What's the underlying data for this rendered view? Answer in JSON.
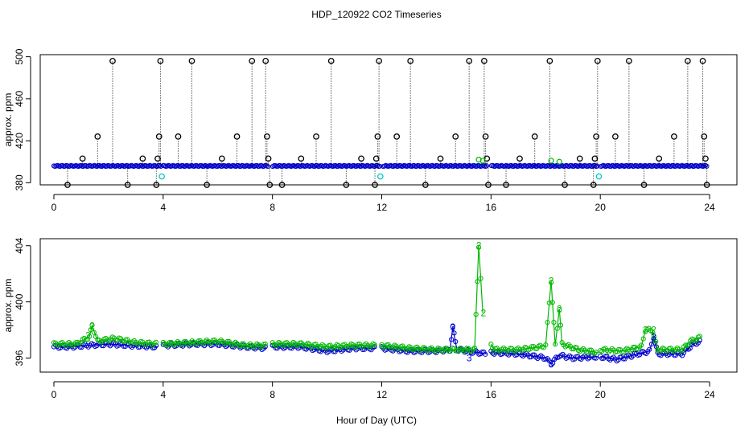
{
  "title": "HDP_120922  CO2 Timeseries",
  "xlabel": "Hour of Day (UTC)",
  "colors": {
    "series1": "#0000cc",
    "series2": "#00b800",
    "spikes": "#000000",
    "cyan": "#00c8c8",
    "frame": "#000000"
  },
  "chart_data": [
    {
      "type": "scatter",
      "ylabel": "approx. ppm",
      "xlim": [
        -0.5,
        25
      ],
      "ylim": [
        378,
        502
      ],
      "x_ticks": [
        0,
        4,
        8,
        12,
        16,
        20,
        24
      ],
      "x_tick_labels": [
        "0",
        "4",
        "8",
        "12",
        "16",
        "20",
        "24"
      ],
      "y_ticks": [
        380,
        420,
        460,
        500
      ],
      "y_tick_labels": [
        "380",
        "420",
        "460",
        "500"
      ],
      "baseline": 396,
      "gaps": [
        [
          3.93,
          4.0
        ],
        [
          7.85,
          7.98
        ],
        [
          11.93,
          12.02
        ],
        [
          15.88,
          15.98
        ],
        [
          19.93,
          20.02
        ]
      ],
      "spikes": [
        {
          "x": 0.5,
          "y": 378
        },
        {
          "x": 1.05,
          "y": 403
        },
        {
          "x": 1.6,
          "y": 424
        },
        {
          "x": 2.15,
          "y": 496
        },
        {
          "x": 2.7,
          "y": 378
        },
        {
          "x": 3.25,
          "y": 403
        },
        {
          "x": 3.75,
          "y": 378
        },
        {
          "x": 3.8,
          "y": 403
        },
        {
          "x": 3.85,
          "y": 424
        },
        {
          "x": 3.9,
          "y": 496
        },
        {
          "x": 4.55,
          "y": 424
        },
        {
          "x": 5.05,
          "y": 496
        },
        {
          "x": 5.6,
          "y": 378
        },
        {
          "x": 6.15,
          "y": 403
        },
        {
          "x": 6.7,
          "y": 424
        },
        {
          "x": 7.25,
          "y": 496
        },
        {
          "x": 7.75,
          "y": 496
        },
        {
          "x": 7.8,
          "y": 424
        },
        {
          "x": 7.85,
          "y": 403
        },
        {
          "x": 7.9,
          "y": 378
        },
        {
          "x": 8.35,
          "y": 378
        },
        {
          "x": 9.05,
          "y": 403
        },
        {
          "x": 9.6,
          "y": 424
        },
        {
          "x": 10.15,
          "y": 496
        },
        {
          "x": 10.7,
          "y": 378
        },
        {
          "x": 11.25,
          "y": 403
        },
        {
          "x": 11.75,
          "y": 378
        },
        {
          "x": 11.8,
          "y": 403
        },
        {
          "x": 11.85,
          "y": 424
        },
        {
          "x": 11.9,
          "y": 496
        },
        {
          "x": 12.55,
          "y": 424
        },
        {
          "x": 13.05,
          "y": 496
        },
        {
          "x": 13.6,
          "y": 378
        },
        {
          "x": 14.15,
          "y": 403
        },
        {
          "x": 14.7,
          "y": 424
        },
        {
          "x": 15.2,
          "y": 496
        },
        {
          "x": 15.75,
          "y": 496
        },
        {
          "x": 15.8,
          "y": 424
        },
        {
          "x": 15.85,
          "y": 403
        },
        {
          "x": 15.9,
          "y": 378
        },
        {
          "x": 16.55,
          "y": 378
        },
        {
          "x": 17.05,
          "y": 403
        },
        {
          "x": 17.6,
          "y": 424
        },
        {
          "x": 18.15,
          "y": 496
        },
        {
          "x": 18.7,
          "y": 378
        },
        {
          "x": 19.25,
          "y": 403
        },
        {
          "x": 19.75,
          "y": 378
        },
        {
          "x": 19.8,
          "y": 403
        },
        {
          "x": 19.85,
          "y": 424
        },
        {
          "x": 19.9,
          "y": 496
        },
        {
          "x": 20.55,
          "y": 424
        },
        {
          "x": 21.05,
          "y": 496
        },
        {
          "x": 21.6,
          "y": 378
        },
        {
          "x": 22.15,
          "y": 403
        },
        {
          "x": 22.7,
          "y": 424
        },
        {
          "x": 23.2,
          "y": 496
        },
        {
          "x": 23.75,
          "y": 496
        },
        {
          "x": 23.8,
          "y": 424
        },
        {
          "x": 23.85,
          "y": 403
        },
        {
          "x": 23.9,
          "y": 378
        }
      ],
      "cyan_points": [
        {
          "x": 3.95,
          "y": 386
        },
        {
          "x": 11.95,
          "y": 386
        },
        {
          "x": 19.95,
          "y": 386
        }
      ],
      "green_points": [
        {
          "x": 15.55,
          "y": 402
        },
        {
          "x": 15.7,
          "y": 401
        },
        {
          "x": 18.2,
          "y": 401
        },
        {
          "x": 18.5,
          "y": 400
        }
      ]
    },
    {
      "type": "line",
      "ylabel": "approx. ppm",
      "xlim": [
        -0.5,
        25
      ],
      "ylim": [
        395.0,
        404.5
      ],
      "x_ticks": [
        0,
        4,
        8,
        12,
        16,
        20,
        24
      ],
      "x_tick_labels": [
        "0",
        "4",
        "8",
        "12",
        "16",
        "20",
        "24"
      ],
      "y_ticks": [
        396,
        400,
        404
      ],
      "y_tick_labels": [
        "396",
        "400",
        "404"
      ],
      "series": [
        {
          "values": [
            [
              0.0,
              396.8
            ],
            [
              0.6,
              396.8
            ],
            [
              1.2,
              396.9
            ],
            [
              2.0,
              397.0
            ],
            [
              2.8,
              396.9
            ],
            [
              3.8,
              396.8
            ],
            [
              4.0,
              396.9
            ],
            [
              5.2,
              397.0
            ],
            [
              6.0,
              397.0
            ],
            [
              7.0,
              396.8
            ],
            [
              7.8,
              396.7
            ],
            [
              8.0,
              396.8
            ],
            [
              9.0,
              396.8
            ],
            [
              10.0,
              396.5
            ],
            [
              11.0,
              396.7
            ],
            [
              11.8,
              396.7
            ],
            [
              12.0,
              396.7
            ],
            [
              13.0,
              396.5
            ],
            [
              14.0,
              396.5
            ],
            [
              14.5,
              396.6
            ],
            [
              14.6,
              398.2
            ],
            [
              14.75,
              396.6
            ],
            [
              15.5,
              396.4
            ],
            [
              15.85,
              396.3
            ],
            [
              16.0,
              396.4
            ],
            [
              17.0,
              396.3
            ],
            [
              18.0,
              396.0
            ],
            [
              18.2,
              395.6
            ],
            [
              18.5,
              396.2
            ],
            [
              19.0,
              396.0
            ],
            [
              19.9,
              396.1
            ],
            [
              20.0,
              396.1
            ],
            [
              20.6,
              395.9
            ],
            [
              21.2,
              396.2
            ],
            [
              21.8,
              396.5
            ],
            [
              21.95,
              397.5
            ],
            [
              22.1,
              396.3
            ],
            [
              23.0,
              396.3
            ],
            [
              23.4,
              397.0
            ],
            [
              23.7,
              397.2
            ]
          ]
        },
        {
          "values": [
            [
              0.0,
              397.0
            ],
            [
              0.8,
              397.0
            ],
            [
              1.3,
              397.5
            ],
            [
              1.4,
              398.3
            ],
            [
              1.6,
              397.2
            ],
            [
              2.2,
              397.4
            ],
            [
              3.0,
              397.1
            ],
            [
              3.8,
              397.0
            ],
            [
              4.0,
              397.0
            ],
            [
              5.0,
              397.1
            ],
            [
              6.0,
              397.2
            ],
            [
              7.0,
              396.9
            ],
            [
              7.8,
              396.9
            ],
            [
              8.0,
              397.0
            ],
            [
              9.0,
              397.0
            ],
            [
              10.0,
              396.8
            ],
            [
              11.0,
              396.9
            ],
            [
              11.8,
              396.9
            ],
            [
              12.0,
              396.9
            ],
            [
              13.0,
              396.7
            ],
            [
              14.0,
              396.6
            ],
            [
              15.0,
              396.6
            ],
            [
              15.4,
              396.6
            ],
            [
              15.55,
              404.0
            ],
            [
              15.7,
              399.2
            ],
            [
              16.0,
              397.0
            ],
            [
              16.1,
              396.6
            ],
            [
              17.0,
              396.6
            ],
            [
              17.8,
              396.8
            ],
            [
              18.0,
              396.9
            ],
            [
              18.2,
              401.5
            ],
            [
              18.35,
              396.9
            ],
            [
              18.5,
              399.5
            ],
            [
              18.6,
              397.0
            ],
            [
              19.2,
              396.6
            ],
            [
              19.9,
              396.4
            ],
            [
              20.0,
              396.6
            ],
            [
              20.8,
              396.5
            ],
            [
              21.5,
              396.8
            ],
            [
              21.65,
              398.0
            ],
            [
              21.9,
              398.0
            ],
            [
              22.1,
              396.6
            ],
            [
              23.0,
              396.6
            ],
            [
              23.3,
              397.2
            ],
            [
              23.7,
              397.5
            ]
          ]
        }
      ],
      "labels": [
        {
          "x": 15.55,
          "y": 404.0,
          "text": "2",
          "series": 2
        },
        {
          "x": 15.72,
          "y": 399.2,
          "text": "2",
          "series": 2
        },
        {
          "x": 18.2,
          "y": 401.5,
          "text": "2",
          "series": 2
        },
        {
          "x": 18.5,
          "y": 399.5,
          "text": "2",
          "series": 2
        },
        {
          "x": 1.4,
          "y": 398.3,
          "text": "2",
          "series": 2
        },
        {
          "x": 1.25,
          "y": 397.6,
          "text": "2",
          "series": 2
        },
        {
          "x": 21.65,
          "y": 398.0,
          "text": "2",
          "series": 2
        },
        {
          "x": 21.95,
          "y": 398.0,
          "text": "2",
          "series": 2
        },
        {
          "x": 14.6,
          "y": 398.2,
          "text": "3",
          "series": 1
        },
        {
          "x": 18.2,
          "y": 395.6,
          "text": "3",
          "series": 1
        },
        {
          "x": 15.2,
          "y": 396.0,
          "text": "3",
          "series": 1
        },
        {
          "x": 21.95,
          "y": 397.5,
          "text": "3",
          "series": 1
        }
      ]
    }
  ]
}
